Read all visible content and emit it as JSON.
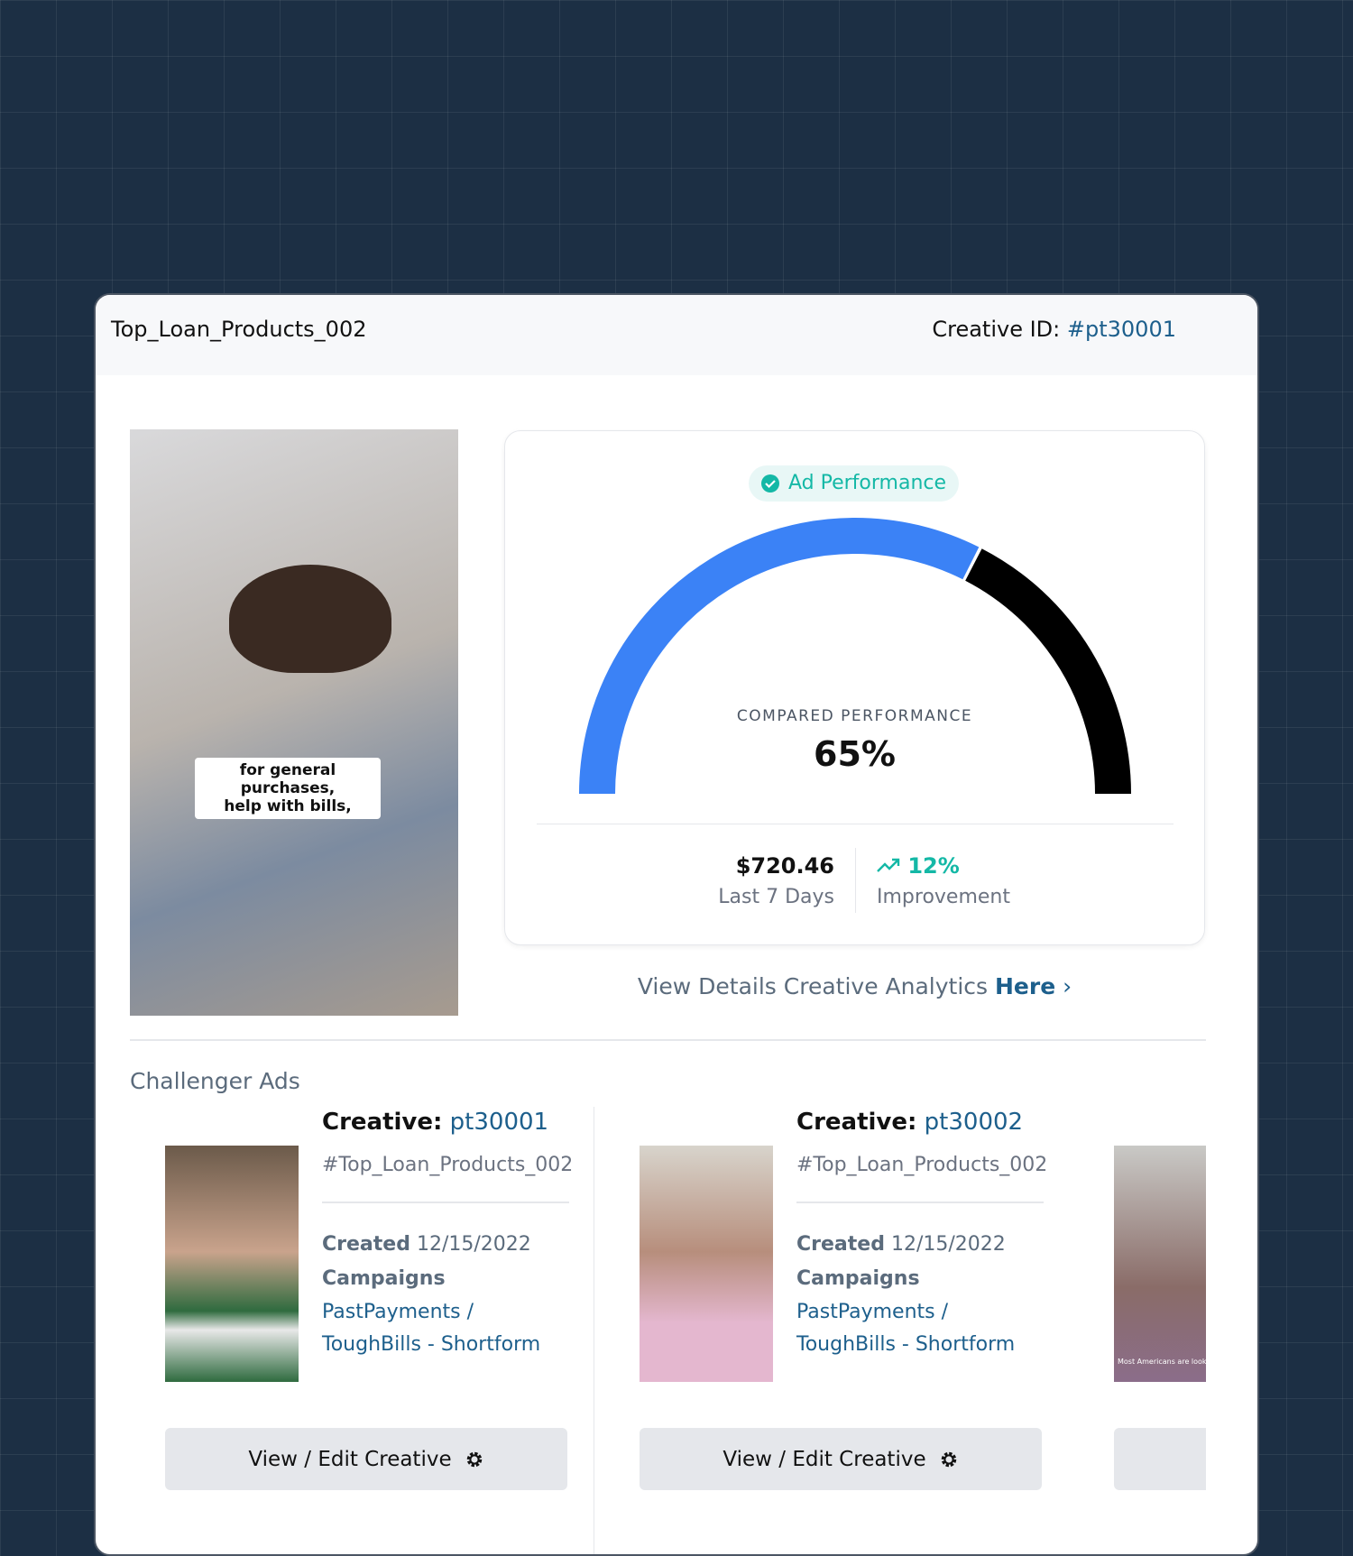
{
  "header": {
    "title": "Top_Loan_Products_002",
    "id_label": "Creative ID:",
    "id_value": "#pt30001"
  },
  "main_video": {
    "caption": "for general purchases,\nhelp with bills,"
  },
  "performance": {
    "badge": "Ad Performance",
    "gauge_label": "COMPARED PERFORMANCE",
    "value": 65,
    "value_label": "65%",
    "colors": [
      "#3b82f6",
      "#000000"
    ],
    "stats": [
      {
        "value": "$720.46",
        "label": "Last 7 Days"
      },
      {
        "value": "12%",
        "label": "Improvement"
      }
    ]
  },
  "link": {
    "text": "View Details Creative Analytics",
    "emphasis": "Here"
  },
  "challengers": {
    "title": "Challenger Ads",
    "ads": [
      {
        "creative_label": "Creative:",
        "creative_id": "pt30001",
        "tag": "#Top_Loan_Products_002",
        "created_label": "Created",
        "created": "12/15/2022",
        "campaigns_label": "Campaigns",
        "campaign_1": "PastPayments /",
        "campaign_2": "ToughBills - Shortform",
        "button": "View / Edit Creative"
      },
      {
        "creative_label": "Creative:",
        "creative_id": "pt30002",
        "tag": "#Top_Loan_Products_002",
        "created_label": "Created",
        "created": "12/15/2022",
        "campaigns_label": "Campaigns",
        "campaign_1": "PastPayments /",
        "campaign_2": "ToughBills - Shortform",
        "button": "View / Edit Creative"
      }
    ],
    "partial_caption": "Most Americans are looking"
  }
}
